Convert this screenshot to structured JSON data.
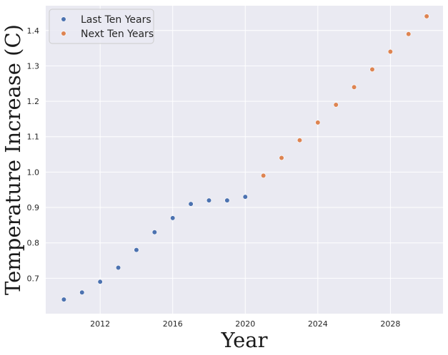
{
  "chart_data": {
    "type": "scatter",
    "title": "",
    "xlabel": "Year",
    "ylabel": "Temperature Increase (C)",
    "xlim": [
      2009.0,
      2030.9
    ],
    "ylim": [
      0.6,
      1.47
    ],
    "xticks": [
      2012,
      2016,
      2020,
      2024,
      2028
    ],
    "yticks": [
      0.7,
      0.8,
      0.9,
      1.0,
      1.1,
      1.2,
      1.3,
      1.4
    ],
    "xtick_labels": [
      "2012",
      "2016",
      "2020",
      "2024",
      "2028"
    ],
    "ytick_labels": [
      "0.7",
      "0.8",
      "0.9",
      "1.0",
      "1.1",
      "1.2",
      "1.3",
      "1.4"
    ],
    "grid": true,
    "legend_position": "top-left",
    "series": [
      {
        "name": "Last Ten Years",
        "color": "#4c72b0",
        "points": [
          [
            2010,
            0.64
          ],
          [
            2011,
            0.66
          ],
          [
            2012,
            0.69
          ],
          [
            2013,
            0.73
          ],
          [
            2014,
            0.78
          ],
          [
            2015,
            0.83
          ],
          [
            2016,
            0.87
          ],
          [
            2017,
            0.91
          ],
          [
            2018,
            0.92
          ],
          [
            2019,
            0.92
          ],
          [
            2020,
            0.93
          ]
        ]
      },
      {
        "name": "Next Ten Years",
        "color": "#dd8452",
        "points": [
          [
            2021,
            0.99
          ],
          [
            2022,
            1.04
          ],
          [
            2023,
            1.09
          ],
          [
            2024,
            1.14
          ],
          [
            2025,
            1.19
          ],
          [
            2026,
            1.24
          ],
          [
            2027,
            1.29
          ],
          [
            2028,
            1.34
          ],
          [
            2029,
            1.39
          ],
          [
            2030,
            1.44
          ]
        ]
      }
    ]
  }
}
